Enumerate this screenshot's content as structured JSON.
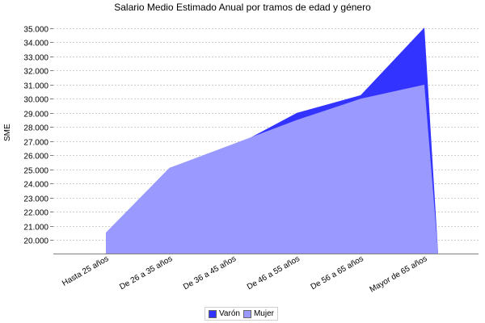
{
  "chart_data": {
    "type": "area",
    "title": "Salario Medio Estimado Anual por tramos de edad y género",
    "xlabel": "",
    "ylabel": "SME",
    "categories": [
      "Hasta 25  años",
      "De 26  a 35  años",
      "De 36  a 45  años",
      "De 46  a 55  años",
      "De 56  a 65  años",
      "Mayor de 65  años"
    ],
    "series": [
      {
        "name": "Varón",
        "color": "#3333ff",
        "values": [
          20500,
          25100,
          26600,
          29000,
          30250,
          35050
        ]
      },
      {
        "name": "Mujer",
        "color": "#9999ff",
        "values": [
          20500,
          25100,
          26800,
          28500,
          30000,
          31000
        ]
      }
    ],
    "ylim": [
      19030,
      35300
    ],
    "yticks": [
      "20.000",
      "21.000",
      "22.000",
      "23.000",
      "24.000",
      "25.000",
      "26.000",
      "27.000",
      "28.000",
      "29.000",
      "30.000",
      "31.000",
      "32.000",
      "33.000",
      "34.000",
      "35.000"
    ],
    "grid": true,
    "legend_position": "bottom"
  }
}
